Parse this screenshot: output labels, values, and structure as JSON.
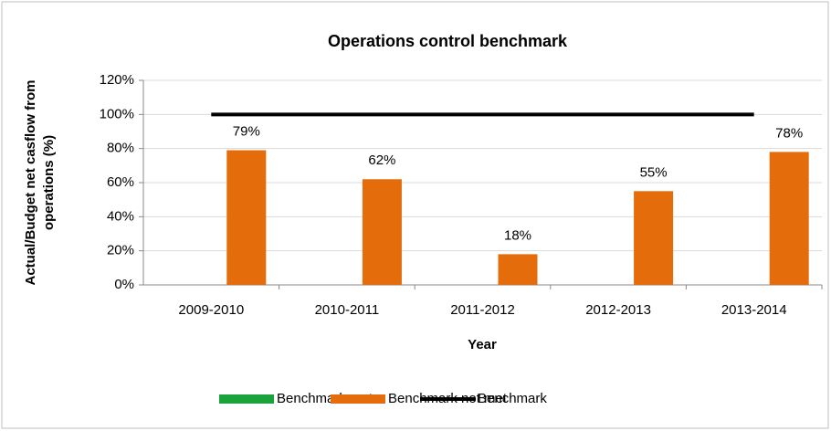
{
  "chart_data": {
    "type": "bar",
    "title": "Operations control benchmark",
    "xlabel": "Year",
    "ylabel": [
      "Actual/Budget net casflow from",
      "operations (%)"
    ],
    "categories": [
      "2009-2010",
      "2010-2011",
      "2011-2012",
      "2012-2013",
      "2013-2014"
    ],
    "series": [
      {
        "name": "Benchmark met",
        "color": "#1aa33a",
        "values": [
          null,
          null,
          null,
          null,
          null
        ]
      },
      {
        "name": "Benchmark not met",
        "color": "#e46c0a",
        "values": [
          79,
          62,
          18,
          55,
          78
        ],
        "value_labels": [
          "79%",
          "62%",
          "18%",
          "55%",
          "78%"
        ]
      },
      {
        "name": "Benchmark",
        "type": "line",
        "color": "#000000",
        "values": [
          100,
          100,
          100,
          100,
          100
        ]
      }
    ],
    "ylim": [
      0,
      120
    ],
    "yticks": [
      {
        "value": 0,
        "label": "0%"
      },
      {
        "value": 20,
        "label": "20%"
      },
      {
        "value": 40,
        "label": "40%"
      },
      {
        "value": 60,
        "label": "60%"
      },
      {
        "value": 80,
        "label": "80%"
      },
      {
        "value": 100,
        "label": "100%"
      },
      {
        "value": 120,
        "label": "120%"
      }
    ],
    "grid": true,
    "legend": "bottom"
  }
}
